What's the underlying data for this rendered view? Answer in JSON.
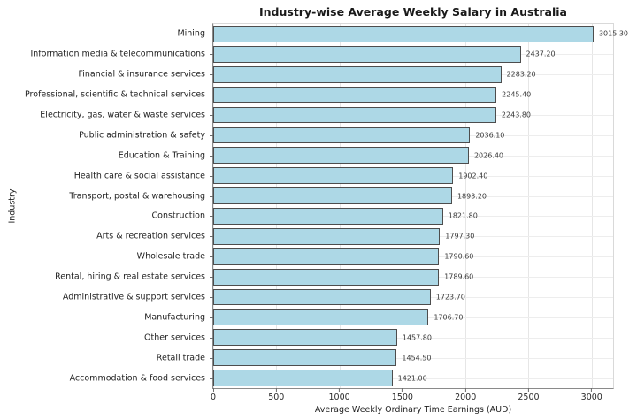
{
  "chart_data": {
    "type": "bar",
    "orientation": "horizontal",
    "title": "Industry-wise Average Weekly Salary in Australia",
    "xlabel": "Average Weekly Ordinary Time Earnings (AUD)",
    "ylabel": "Industry",
    "categories": [
      "Mining",
      "Information media & telecommunications",
      "Financial & insurance services",
      "Professional, scientific & technical services",
      "Electricity, gas, water & waste services",
      "Public administration & safety",
      "Education & Training",
      "Health care & social assistance",
      "Transport, postal & warehousing",
      "Construction",
      "Arts & recreation services",
      "Wholesale trade",
      "Rental, hiring & real estate services",
      "Administrative & support services",
      "Manufacturing",
      "Other services",
      "Retail trade",
      "Accommodation & food services"
    ],
    "values": [
      3015.3,
      2437.2,
      2283.2,
      2245.4,
      2243.8,
      2036.1,
      2026.4,
      1902.4,
      1893.2,
      1821.8,
      1797.3,
      1790.6,
      1789.6,
      1723.7,
      1706.7,
      1457.8,
      1454.5,
      1421.0
    ],
    "value_label_decimals": 2,
    "xticks": [
      0,
      500,
      1000,
      1500,
      2000,
      2500,
      3000
    ],
    "xlim": [
      0,
      3170
    ],
    "grid": true,
    "legend": "none",
    "colors": {
      "bar_fill": "#add8e6",
      "bar_edge": "#4d4d4d",
      "grid": "#e6e6e6",
      "text": "#1f1f1f"
    }
  }
}
